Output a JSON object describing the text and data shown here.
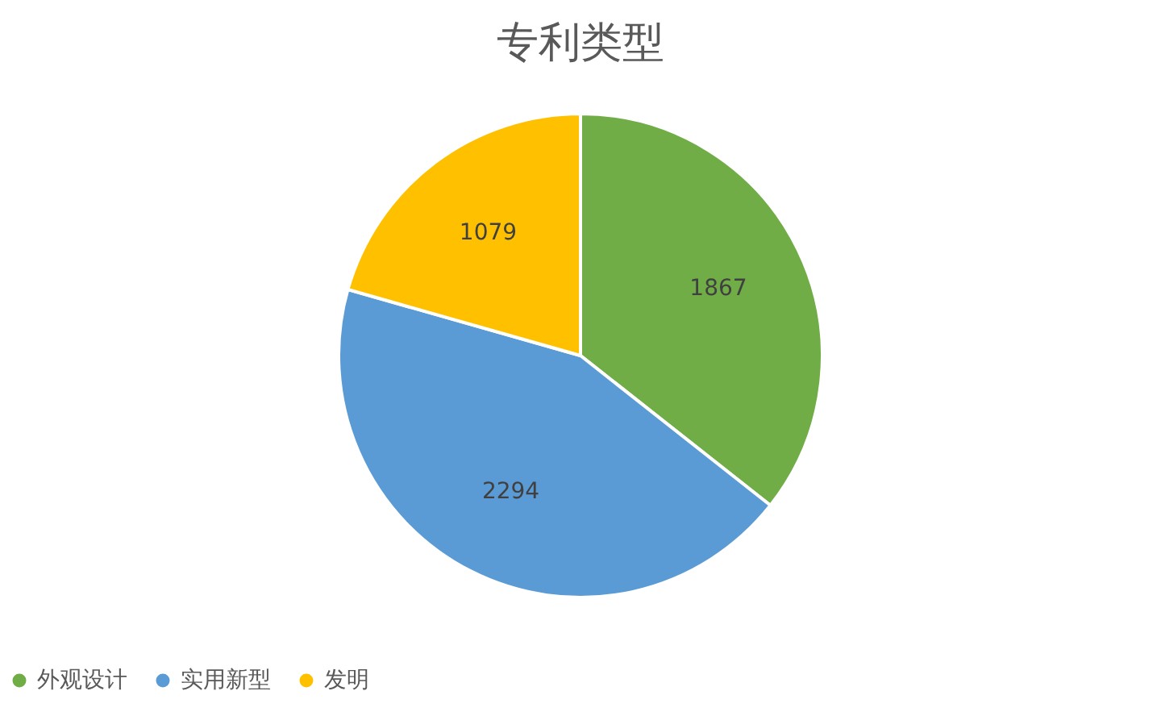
{
  "chart_data": {
    "type": "pie",
    "title": "专利类型",
    "categories": [
      "外观设计",
      "实用新型",
      "发明"
    ],
    "values": [
      1867,
      2294,
      1079
    ],
    "colors": [
      "#70ad47",
      "#5b9bd5",
      "#ffc000"
    ],
    "data_labels": true,
    "legend": "bottom"
  }
}
